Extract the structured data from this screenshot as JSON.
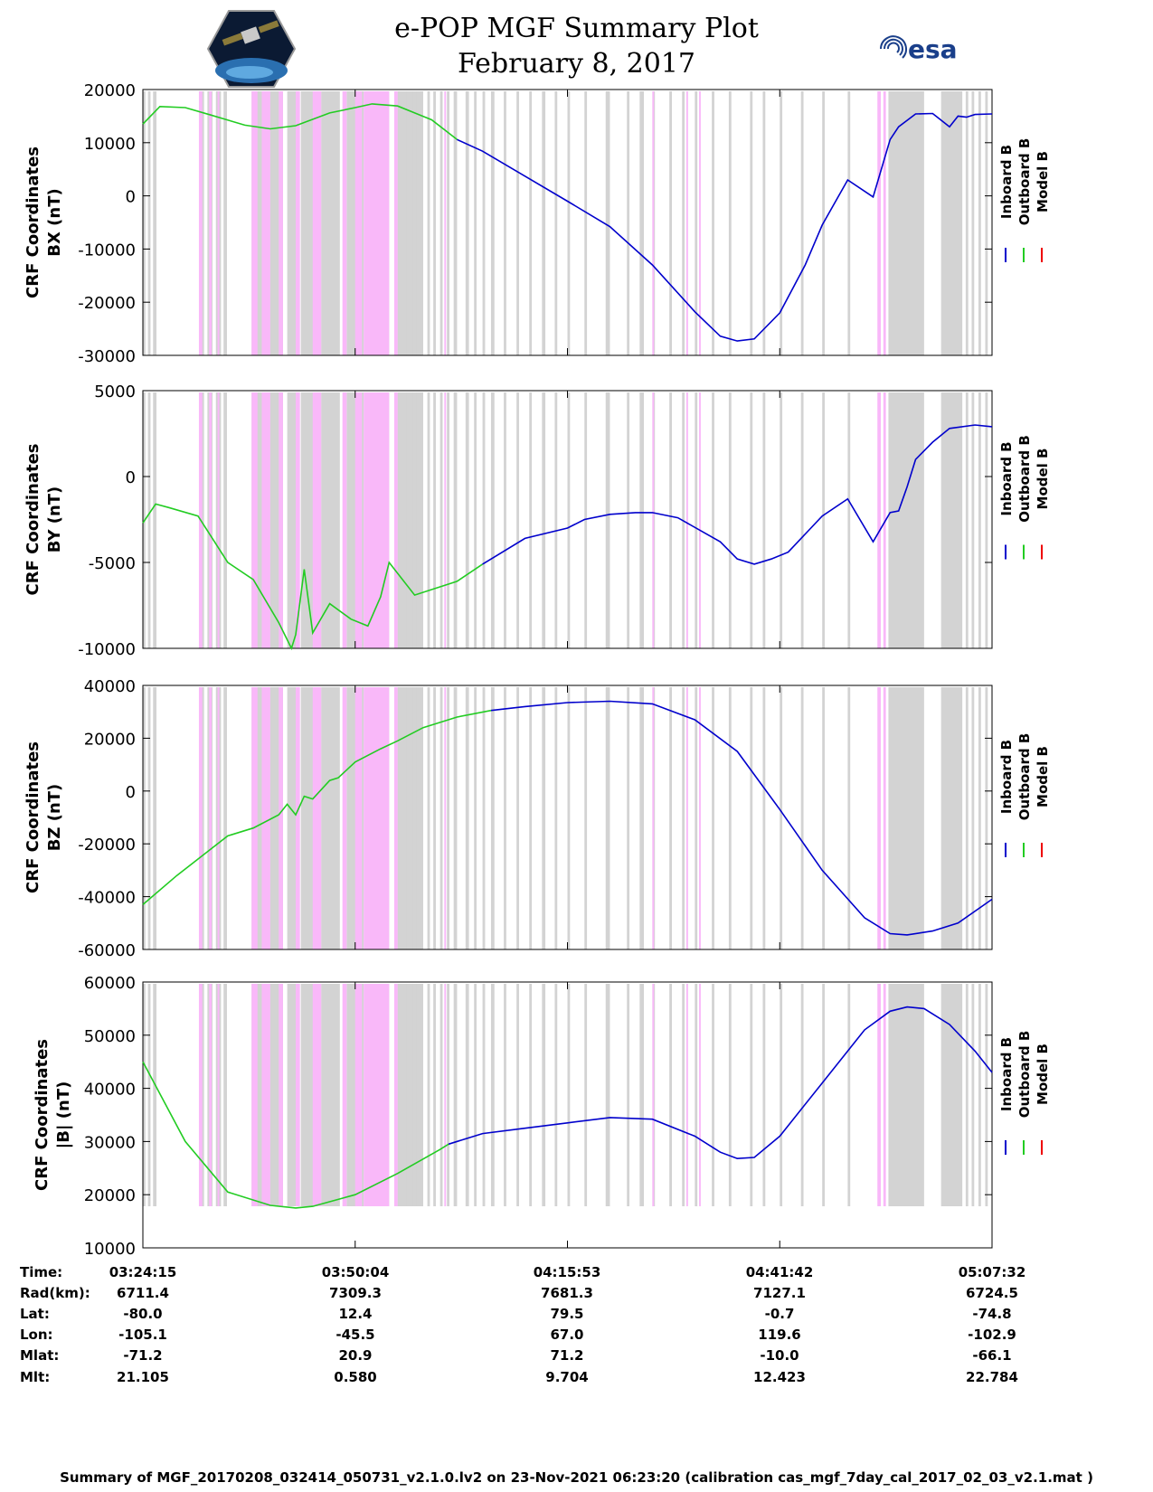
{
  "title": "e-POP MGF Summary Plot",
  "date": "February 8, 2017",
  "logos": {
    "left": "satellite-mission-logo",
    "right": "esa-logo",
    "right_text": "esa"
  },
  "colors": {
    "inboard": "#0000cc",
    "outboard": "#22cc22",
    "model": "#ee0000",
    "gray": "#d3d3d3",
    "pink": "#f9b8f9"
  },
  "legend": [
    "Inboard B",
    "Outboard B",
    "Model B"
  ],
  "chart_data": [
    {
      "type": "line",
      "ylabel1": "CRF Coordinates",
      "ylabel2": "BX (nT)",
      "ylim": [
        -30000,
        20000
      ],
      "yticks": [
        "20000",
        "10000",
        "0",
        "-10000",
        "-20000",
        "-30000"
      ],
      "tickvals": [
        20000,
        10000,
        0,
        -10000,
        -20000,
        -30000
      ],
      "outboard_x": [
        0,
        0.02,
        0.05,
        0.08,
        0.12,
        0.15,
        0.18,
        0.22,
        0.25,
        0.27,
        0.3,
        0.34,
        0.37
      ],
      "outboard_y": [
        13500,
        16800,
        16600,
        15200,
        13300,
        12600,
        13200,
        15600,
        16600,
        17300,
        16900,
        14300,
        10600
      ],
      "inboard_x": [
        0.37,
        0.4,
        0.45,
        0.5,
        0.55,
        0.6,
        0.65,
        0.68,
        0.7,
        0.72,
        0.75,
        0.78,
        0.8,
        0.83,
        0.86,
        0.88,
        0.89,
        0.9,
        0.91,
        0.93,
        0.95,
        0.96,
        0.97,
        0.98,
        1.0
      ],
      "inboard_y": [
        10600,
        8400,
        3700,
        -1000,
        -5800,
        -13000,
        -21800,
        -26400,
        -27300,
        -26900,
        -22000,
        -13000,
        -5500,
        3000,
        -200,
        10600,
        13000,
        14200,
        15400,
        15500,
        13000,
        15000,
        14800,
        15300,
        15400
      ]
    },
    {
      "type": "line",
      "ylabel1": "CRF Coordinates",
      "ylabel2": "BY (nT)",
      "ylim": [
        -10000,
        5000
      ],
      "yticks": [
        "5000",
        "0",
        "-5000",
        "-10000"
      ],
      "tickvals": [
        5000,
        0,
        -5000,
        -10000
      ],
      "outboard_x": [
        0,
        0.015,
        0.03,
        0.065,
        0.1,
        0.13,
        0.16,
        0.175,
        0.18,
        0.19,
        0.2,
        0.22,
        0.245,
        0.265,
        0.28,
        0.29,
        0.32,
        0.37,
        0.4
      ],
      "outboard_y": [
        -2700,
        -1600,
        -1800,
        -2300,
        -5000,
        -6000,
        -8500,
        -10000,
        -9200,
        -5400,
        -9100,
        -7400,
        -8300,
        -8700,
        -7000,
        -5000,
        -6900,
        -6100,
        -5100
      ],
      "inboard_x": [
        0.4,
        0.45,
        0.5,
        0.52,
        0.55,
        0.58,
        0.6,
        0.63,
        0.68,
        0.7,
        0.72,
        0.74,
        0.76,
        0.8,
        0.83,
        0.86,
        0.88,
        0.89,
        0.9,
        0.91,
        0.93,
        0.95,
        0.98,
        1.0
      ],
      "inboard_y": [
        -5100,
        -3600,
        -3000,
        -2500,
        -2200,
        -2100,
        -2100,
        -2400,
        -3800,
        -4800,
        -5100,
        -4800,
        -4400,
        -2300,
        -1300,
        -3800,
        -2100,
        -2000,
        -600,
        1000,
        2000,
        2800,
        3000,
        2900
      ]
    },
    {
      "type": "line",
      "ylabel1": "CRF Coordinates",
      "ylabel2": "BZ (nT)",
      "ylim": [
        -60000,
        40000
      ],
      "yticks": [
        "40000",
        "20000",
        "0",
        "-20000",
        "-40000",
        "-60000"
      ],
      "tickvals": [
        40000,
        20000,
        0,
        -20000,
        -40000,
        -60000
      ],
      "outboard_x": [
        0,
        0.04,
        0.08,
        0.1,
        0.13,
        0.16,
        0.17,
        0.18,
        0.19,
        0.2,
        0.22,
        0.23,
        0.25,
        0.28,
        0.3,
        0.33,
        0.37,
        0.41
      ],
      "outboard_y": [
        -43000,
        -32000,
        -22000,
        -17000,
        -14000,
        -9000,
        -5000,
        -9000,
        -2000,
        -3000,
        4000,
        5000,
        11000,
        16000,
        19000,
        24000,
        28000,
        30500
      ],
      "inboard_x": [
        0.41,
        0.45,
        0.5,
        0.55,
        0.6,
        0.65,
        0.7,
        0.75,
        0.8,
        0.85,
        0.88,
        0.9,
        0.93,
        0.96,
        1.0
      ],
      "inboard_y": [
        30500,
        32000,
        33500,
        34000,
        33000,
        27000,
        15000,
        -7000,
        -30000,
        -48000,
        -54000,
        -54500,
        -53000,
        -50000,
        -41000
      ]
    },
    {
      "type": "line",
      "ylabel1": "CRF Coordinates",
      "ylabel2": "|B| (nT)",
      "ylim": [
        10000,
        60000
      ],
      "yticks": [
        "60000",
        "50000",
        "40000",
        "30000",
        "20000",
        "10000"
      ],
      "tickvals": [
        60000,
        50000,
        40000,
        30000,
        20000,
        10000
      ],
      "outboard_x": [
        0,
        0.05,
        0.1,
        0.15,
        0.18,
        0.2,
        0.25,
        0.3,
        0.35,
        0.36
      ],
      "outboard_y": [
        45000,
        30000,
        20500,
        18000,
        17500,
        17800,
        20000,
        24000,
        28500,
        29500
      ],
      "inboard_x": [
        0.36,
        0.4,
        0.45,
        0.5,
        0.55,
        0.6,
        0.65,
        0.68,
        0.7,
        0.72,
        0.75,
        0.8,
        0.85,
        0.88,
        0.9,
        0.92,
        0.95,
        0.98,
        1.0
      ],
      "inboard_y": [
        29500,
        31500,
        32500,
        33500,
        34500,
        34200,
        31000,
        28000,
        26800,
        27000,
        31000,
        41000,
        51000,
        54500,
        55300,
        55000,
        52000,
        47000,
        43000
      ]
    }
  ],
  "orbit": {
    "labels": [
      "Time:",
      "Rad(km):",
      "Lat:",
      "Lon:",
      "Mlat:",
      "Mlt:"
    ],
    "columns": [
      [
        "03:24:15",
        "6711.4",
        "-80.0",
        "-105.1",
        "-71.2",
        "21.105"
      ],
      [
        "03:50:04",
        "7309.3",
        "12.4",
        "-45.5",
        "20.9",
        "0.580"
      ],
      [
        "04:15:53",
        "7681.3",
        "79.5",
        "67.0",
        "71.2",
        "9.704"
      ],
      [
        "04:41:42",
        "7127.1",
        "-0.7",
        "119.6",
        "-10.0",
        "12.423"
      ],
      [
        "05:07:32",
        "6724.5",
        "-74.8",
        "-102.9",
        "-66.1",
        "22.784"
      ]
    ]
  },
  "footer": "Summary of MGF_20170208_032414_050731_v2.1.0.lv2 on 23-Nov-2021 06:23:20 (calibration cas_mgf_7day_cal_2017_02_03_v2.1.mat )"
}
